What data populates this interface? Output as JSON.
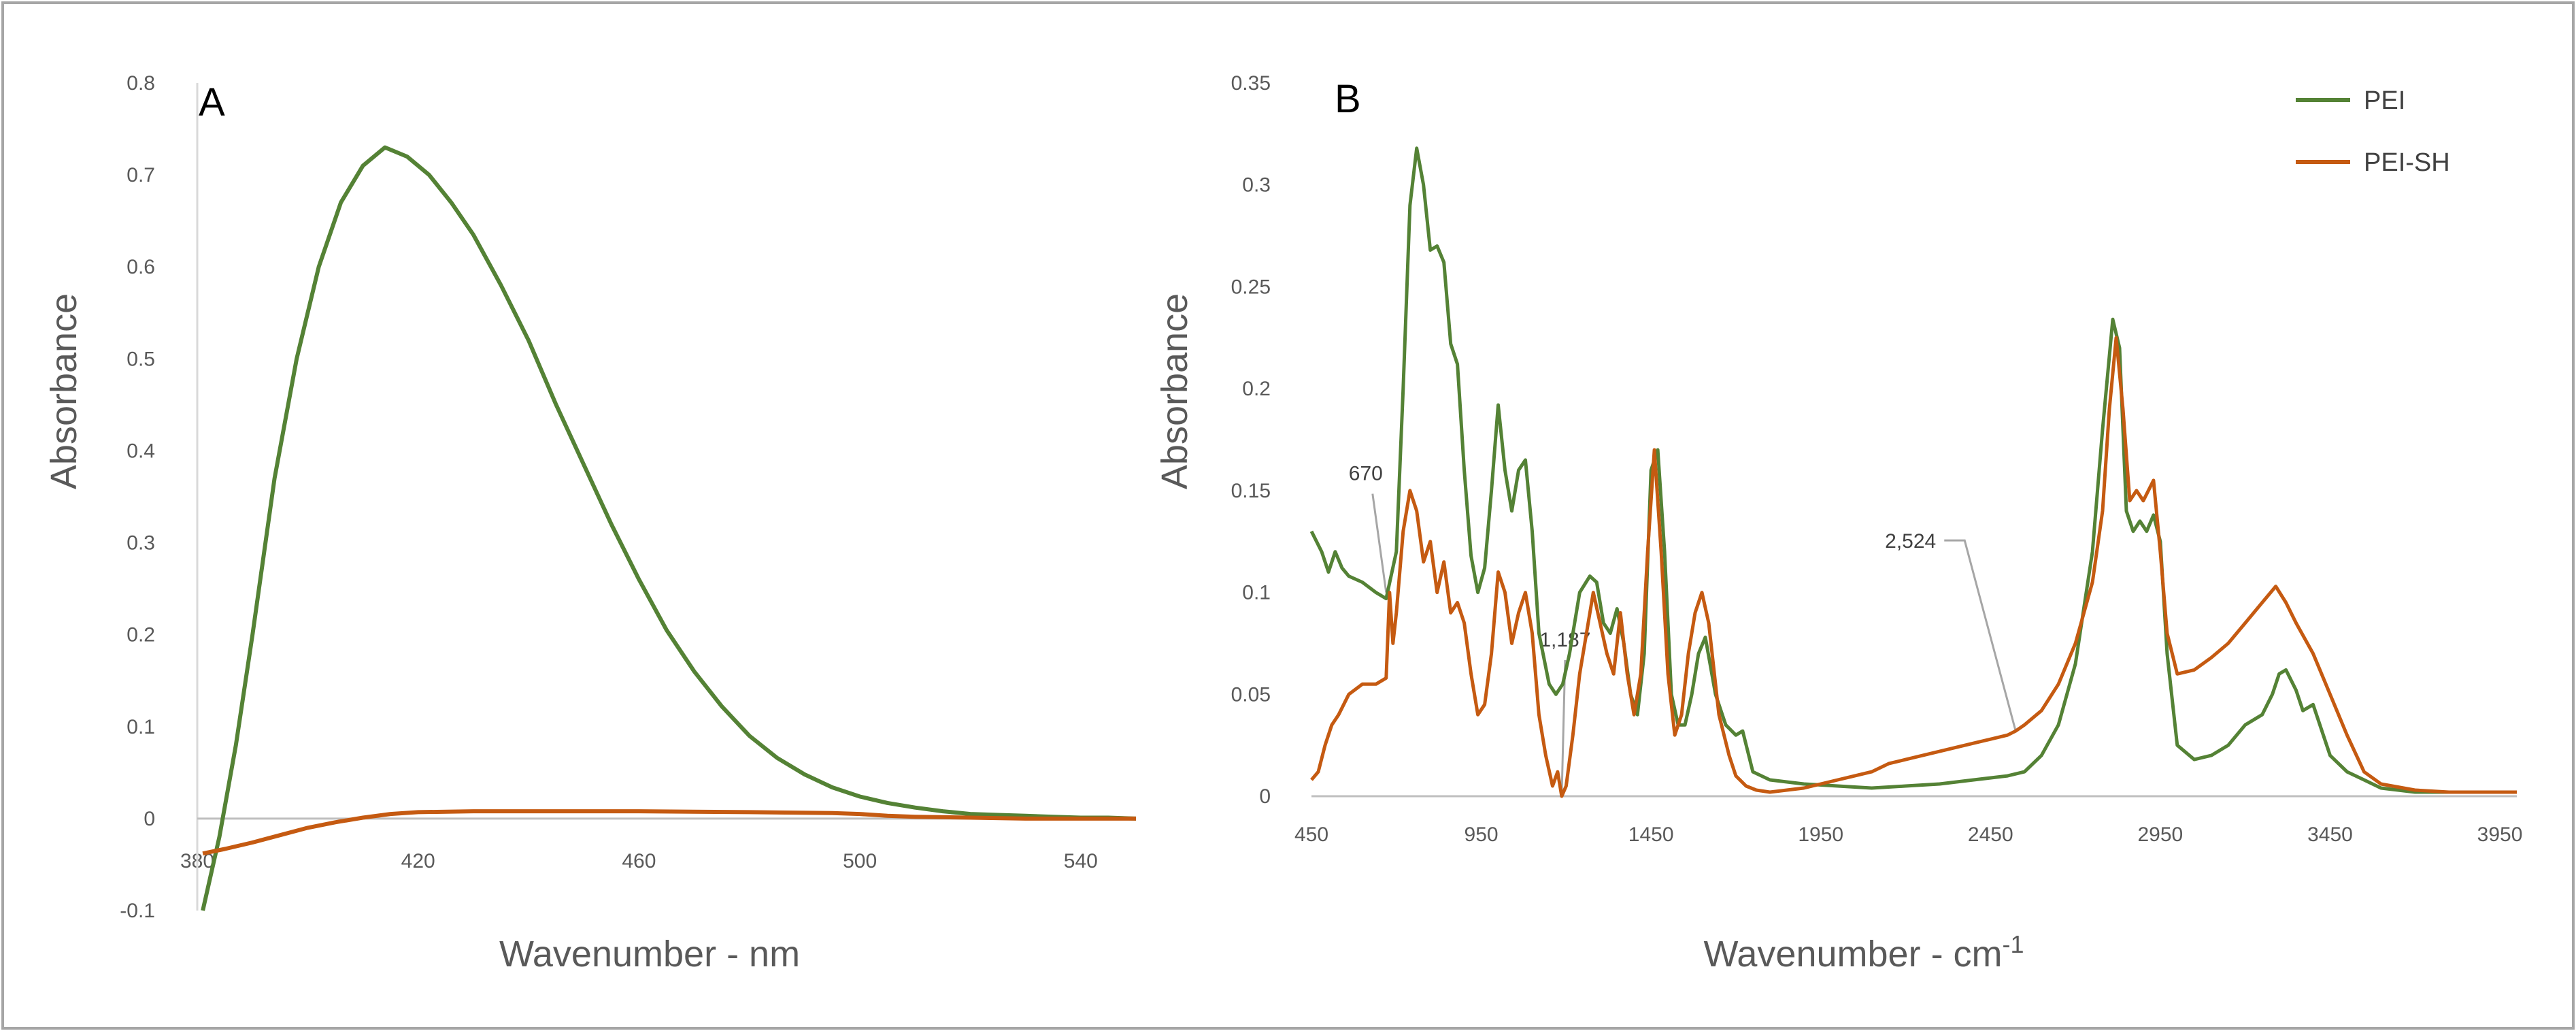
{
  "chart_data": [
    {
      "type": "line",
      "panel_label": "A",
      "xlabel": "Wavenumber - nm",
      "ylabel": "Absorbance",
      "xlim": [
        380,
        550
      ],
      "ylim": [
        -0.1,
        0.8
      ],
      "x_ticks": [
        380,
        420,
        460,
        500,
        540
      ],
      "x_tick_labels": [
        "380",
        "420",
        "460",
        "500",
        "540"
      ],
      "y_ticks": [
        -0.1,
        0,
        0.1,
        0.2,
        0.3,
        0.4,
        0.5,
        0.6,
        0.7,
        0.8
      ],
      "y_tick_labels": [
        "-0.1",
        "0",
        "0.1",
        "0.2",
        "0.3",
        "0.4",
        "0.5",
        "0.6",
        "0.7",
        "0.8"
      ],
      "grid": false,
      "series": [
        {
          "name": "PEI",
          "color": "#548235",
          "x": [
            381,
            384,
            387,
            390,
            394,
            398,
            402,
            406,
            410,
            414,
            418,
            422,
            426,
            430,
            435,
            440,
            445,
            450,
            455,
            460,
            465,
            470,
            475,
            480,
            485,
            490,
            495,
            500,
            505,
            510,
            515,
            520,
            525,
            530,
            535,
            540,
            545,
            550
          ],
          "y": [
            -0.1,
            -0.02,
            0.08,
            0.2,
            0.37,
            0.5,
            0.6,
            0.67,
            0.71,
            0.73,
            0.72,
            0.7,
            0.67,
            0.635,
            0.58,
            0.52,
            0.45,
            0.385,
            0.32,
            0.26,
            0.205,
            0.16,
            0.122,
            0.09,
            0.066,
            0.048,
            0.034,
            0.024,
            0.017,
            0.012,
            0.008,
            0.005,
            0.004,
            0.003,
            0.002,
            0.001,
            0.001,
            0.0
          ]
        },
        {
          "name": "PEI-SH",
          "color": "#C55A11",
          "x": [
            381,
            385,
            390,
            395,
            400,
            405,
            410,
            415,
            420,
            430,
            440,
            460,
            480,
            495,
            500,
            505,
            510,
            520,
            530,
            540,
            550
          ],
          "y": [
            -0.038,
            -0.033,
            -0.026,
            -0.018,
            -0.01,
            -0.004,
            0.001,
            0.005,
            0.007,
            0.008,
            0.008,
            0.008,
            0.007,
            0.006,
            0.005,
            0.003,
            0.002,
            0.001,
            0.0,
            0.0,
            0.0
          ]
        }
      ]
    },
    {
      "type": "line",
      "panel_label": "B",
      "xlabel": "Wavenumber - cm",
      "xlabel_superscript": "-1",
      "ylabel": "Absorbance",
      "xlim": [
        450,
        4000
      ],
      "ylim": [
        0,
        0.35
      ],
      "x_ticks": [
        450,
        950,
        1450,
        1950,
        2450,
        2950,
        3450,
        3950
      ],
      "x_tick_labels": [
        "450",
        "950",
        "1450",
        "1950",
        "2450",
        "2950",
        "3450",
        "3950"
      ],
      "y_ticks": [
        0,
        0.05,
        0.1,
        0.15,
        0.2,
        0.25,
        0.3,
        0.35
      ],
      "y_tick_labels": [
        "0",
        "0.05",
        "0.1",
        "0.15",
        "0.2",
        "0.25",
        "0.3",
        "0.35"
      ],
      "grid": false,
      "legend": {
        "position": "top-right",
        "entries": [
          "PEI",
          "PEI-SH"
        ]
      },
      "annotations": [
        {
          "text": "670",
          "x": 670,
          "y": 0.1
        },
        {
          "text": "1,187",
          "x": 1187,
          "y": 0.0
        },
        {
          "text": "2,524",
          "x": 2524,
          "y": 0.032
        }
      ],
      "series": [
        {
          "name": "PEI",
          "color": "#548235",
          "x": [
            450,
            480,
            500,
            520,
            540,
            560,
            600,
            640,
            670,
            700,
            720,
            740,
            760,
            780,
            800,
            820,
            840,
            860,
            880,
            900,
            920,
            940,
            960,
            980,
            1000,
            1020,
            1040,
            1060,
            1080,
            1100,
            1120,
            1150,
            1170,
            1190,
            1210,
            1240,
            1270,
            1290,
            1310,
            1330,
            1350,
            1370,
            1390,
            1410,
            1430,
            1450,
            1470,
            1490,
            1510,
            1530,
            1550,
            1570,
            1590,
            1610,
            1640,
            1670,
            1700,
            1720,
            1750,
            1800,
            1900,
            2000,
            2100,
            2200,
            2300,
            2400,
            2500,
            2550,
            2600,
            2650,
            2700,
            2750,
            2780,
            2810,
            2830,
            2850,
            2870,
            2890,
            2910,
            2930,
            2950,
            2970,
            3000,
            3050,
            3100,
            3150,
            3200,
            3250,
            3280,
            3300,
            3320,
            3350,
            3370,
            3400,
            3450,
            3500,
            3550,
            3600,
            3700,
            3800,
            3900,
            4000
          ],
          "y": [
            0.13,
            0.12,
            0.11,
            0.12,
            0.112,
            0.108,
            0.105,
            0.1,
            0.097,
            0.12,
            0.2,
            0.29,
            0.318,
            0.3,
            0.268,
            0.27,
            0.262,
            0.222,
            0.212,
            0.16,
            0.118,
            0.1,
            0.112,
            0.15,
            0.192,
            0.16,
            0.14,
            0.16,
            0.165,
            0.13,
            0.08,
            0.055,
            0.05,
            0.055,
            0.07,
            0.1,
            0.108,
            0.105,
            0.085,
            0.08,
            0.092,
            0.075,
            0.05,
            0.04,
            0.07,
            0.16,
            0.17,
            0.12,
            0.05,
            0.035,
            0.035,
            0.05,
            0.07,
            0.078,
            0.05,
            0.035,
            0.03,
            0.032,
            0.012,
            0.008,
            0.006,
            0.005,
            0.004,
            0.005,
            0.006,
            0.008,
            0.01,
            0.012,
            0.02,
            0.035,
            0.065,
            0.12,
            0.18,
            0.234,
            0.22,
            0.14,
            0.13,
            0.135,
            0.13,
            0.138,
            0.125,
            0.07,
            0.025,
            0.018,
            0.02,
            0.025,
            0.035,
            0.04,
            0.05,
            0.06,
            0.062,
            0.052,
            0.042,
            0.045,
            0.02,
            0.012,
            0.008,
            0.004,
            0.002,
            0.002,
            0.002,
            0.002
          ]
        },
        {
          "name": "PEI-SH",
          "color": "#C55A11",
          "x": [
            450,
            470,
            490,
            510,
            530,
            560,
            600,
            640,
            670,
            680,
            690,
            700,
            720,
            740,
            760,
            780,
            800,
            820,
            840,
            860,
            880,
            900,
            920,
            940,
            960,
            980,
            1000,
            1020,
            1040,
            1060,
            1080,
            1100,
            1120,
            1140,
            1160,
            1175,
            1187,
            1200,
            1220,
            1240,
            1260,
            1280,
            1300,
            1320,
            1340,
            1360,
            1380,
            1400,
            1420,
            1440,
            1460,
            1480,
            1500,
            1520,
            1540,
            1560,
            1580,
            1600,
            1620,
            1650,
            1680,
            1700,
            1730,
            1760,
            1800,
            1850,
            1900,
            1950,
            2000,
            2050,
            2100,
            2150,
            2200,
            2300,
            2400,
            2450,
            2500,
            2524,
            2550,
            2600,
            2650,
            2700,
            2750,
            2780,
            2800,
            2820,
            2840,
            2860,
            2880,
            2900,
            2930,
            2950,
            2970,
            3000,
            3050,
            3100,
            3150,
            3200,
            3250,
            3290,
            3320,
            3350,
            3400,
            3450,
            3500,
            3550,
            3600,
            3700,
            3800,
            3900,
            4000
          ],
          "y": [
            0.008,
            0.012,
            0.025,
            0.035,
            0.04,
            0.05,
            0.055,
            0.055,
            0.058,
            0.1,
            0.075,
            0.09,
            0.13,
            0.15,
            0.14,
            0.115,
            0.125,
            0.1,
            0.115,
            0.09,
            0.095,
            0.085,
            0.06,
            0.04,
            0.045,
            0.07,
            0.11,
            0.1,
            0.075,
            0.09,
            0.1,
            0.08,
            0.04,
            0.02,
            0.005,
            0.012,
            0.0,
            0.005,
            0.03,
            0.06,
            0.08,
            0.1,
            0.085,
            0.07,
            0.06,
            0.09,
            0.06,
            0.04,
            0.06,
            0.12,
            0.17,
            0.12,
            0.06,
            0.03,
            0.04,
            0.07,
            0.09,
            0.1,
            0.085,
            0.04,
            0.02,
            0.01,
            0.005,
            0.003,
            0.002,
            0.003,
            0.004,
            0.006,
            0.008,
            0.01,
            0.012,
            0.016,
            0.018,
            0.022,
            0.026,
            0.028,
            0.03,
            0.032,
            0.035,
            0.042,
            0.055,
            0.075,
            0.105,
            0.14,
            0.19,
            0.225,
            0.19,
            0.145,
            0.15,
            0.145,
            0.155,
            0.12,
            0.08,
            0.06,
            0.062,
            0.068,
            0.075,
            0.085,
            0.095,
            0.103,
            0.095,
            0.085,
            0.07,
            0.05,
            0.03,
            0.012,
            0.006,
            0.003,
            0.002,
            0.002,
            0.002
          ]
        }
      ]
    }
  ]
}
